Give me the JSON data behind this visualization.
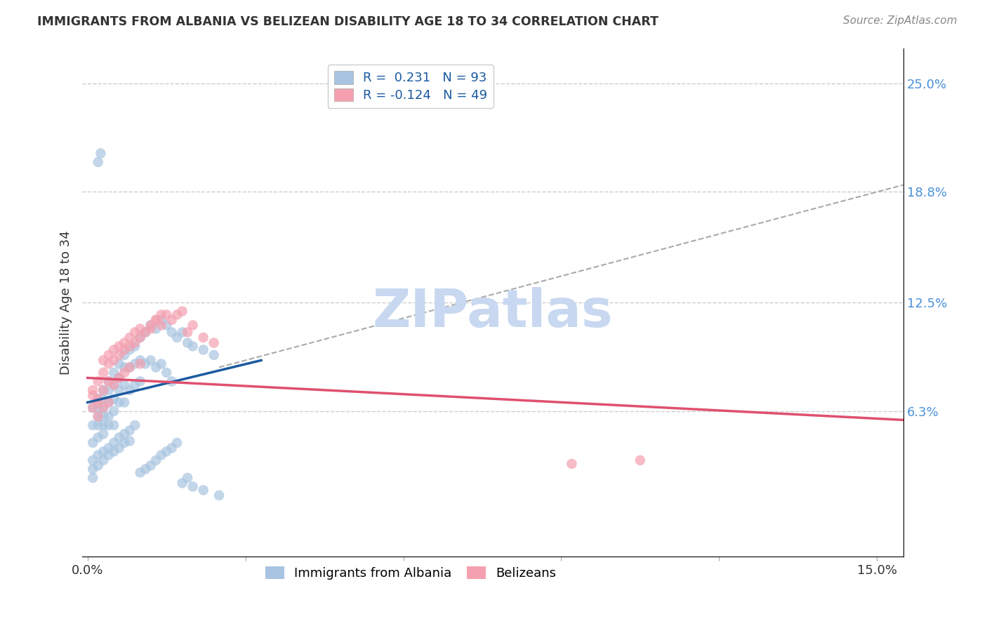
{
  "title": "IMMIGRANTS FROM ALBANIA VS BELIZEAN DISABILITY AGE 18 TO 34 CORRELATION CHART",
  "source": "Source: ZipAtlas.com",
  "ylabel": "Disability Age 18 to 34",
  "y_ticks_right": [
    0.063,
    0.125,
    0.188,
    0.25
  ],
  "y_tick_labels_right": [
    "6.3%",
    "12.5%",
    "18.8%",
    "25.0%"
  ],
  "xlim": [
    -0.001,
    0.155
  ],
  "ylim": [
    -0.02,
    0.27
  ],
  "legend_r1": "R =  0.231   N = 93",
  "legend_r2": "R = -0.124   N = 49",
  "blue_color": "#a8c4e0",
  "pink_color": "#f4a0b0",
  "blue_line_color": "#1a5aa0",
  "pink_line_color": "#e05070",
  "dashed_line_color": "#aaaaaa",
  "watermark": "ZIPatlas",
  "watermark_color": "#c8d8f0",
  "albania_x": [
    0.001,
    0.001,
    0.001,
    0.002,
    0.002,
    0.002,
    0.002,
    0.002,
    0.003,
    0.003,
    0.003,
    0.003,
    0.003,
    0.003,
    0.004,
    0.004,
    0.004,
    0.004,
    0.004,
    0.005,
    0.005,
    0.005,
    0.005,
    0.005,
    0.006,
    0.006,
    0.006,
    0.006,
    0.007,
    0.007,
    0.007,
    0.007,
    0.008,
    0.008,
    0.008,
    0.009,
    0.009,
    0.009,
    0.01,
    0.01,
    0.01,
    0.011,
    0.011,
    0.012,
    0.012,
    0.013,
    0.013,
    0.014,
    0.014,
    0.015,
    0.015,
    0.016,
    0.016,
    0.017,
    0.018,
    0.019,
    0.02,
    0.022,
    0.024,
    0.002,
    0.0025,
    0.001,
    0.001,
    0.001,
    0.002,
    0.002,
    0.003,
    0.003,
    0.004,
    0.004,
    0.005,
    0.005,
    0.006,
    0.006,
    0.007,
    0.007,
    0.008,
    0.008,
    0.009,
    0.01,
    0.011,
    0.012,
    0.013,
    0.014,
    0.015,
    0.016,
    0.017,
    0.018,
    0.019,
    0.02,
    0.022,
    0.025
  ],
  "albania_y": [
    0.065,
    0.055,
    0.045,
    0.07,
    0.065,
    0.06,
    0.055,
    0.048,
    0.075,
    0.07,
    0.065,
    0.06,
    0.055,
    0.05,
    0.08,
    0.075,
    0.068,
    0.06,
    0.055,
    0.085,
    0.078,
    0.07,
    0.063,
    0.055,
    0.09,
    0.082,
    0.075,
    0.068,
    0.095,
    0.088,
    0.078,
    0.068,
    0.098,
    0.088,
    0.075,
    0.1,
    0.09,
    0.078,
    0.105,
    0.092,
    0.08,
    0.108,
    0.09,
    0.112,
    0.092,
    0.11,
    0.088,
    0.115,
    0.09,
    0.112,
    0.085,
    0.108,
    0.08,
    0.105,
    0.108,
    0.102,
    0.1,
    0.098,
    0.095,
    0.205,
    0.21,
    0.035,
    0.03,
    0.025,
    0.038,
    0.032,
    0.04,
    0.035,
    0.042,
    0.038,
    0.045,
    0.04,
    0.048,
    0.042,
    0.05,
    0.045,
    0.052,
    0.046,
    0.055,
    0.028,
    0.03,
    0.032,
    0.035,
    0.038,
    0.04,
    0.042,
    0.045,
    0.022,
    0.025,
    0.02,
    0.018,
    0.015
  ],
  "belize_x": [
    0.001,
    0.001,
    0.002,
    0.002,
    0.002,
    0.003,
    0.003,
    0.003,
    0.004,
    0.004,
    0.004,
    0.005,
    0.005,
    0.006,
    0.006,
    0.007,
    0.007,
    0.008,
    0.008,
    0.009,
    0.01,
    0.01,
    0.011,
    0.012,
    0.013,
    0.014,
    0.015,
    0.016,
    0.017,
    0.018,
    0.019,
    0.02,
    0.022,
    0.024,
    0.003,
    0.004,
    0.005,
    0.006,
    0.007,
    0.008,
    0.009,
    0.01,
    0.012,
    0.013,
    0.014,
    0.092,
    0.105,
    0.001,
    0.002
  ],
  "belize_y": [
    0.075,
    0.065,
    0.08,
    0.07,
    0.06,
    0.085,
    0.075,
    0.065,
    0.09,
    0.08,
    0.068,
    0.092,
    0.078,
    0.095,
    0.082,
    0.098,
    0.085,
    0.1,
    0.088,
    0.102,
    0.105,
    0.09,
    0.108,
    0.11,
    0.115,
    0.112,
    0.118,
    0.115,
    0.118,
    0.12,
    0.108,
    0.112,
    0.105,
    0.102,
    0.092,
    0.095,
    0.098,
    0.1,
    0.102,
    0.105,
    0.108,
    0.11,
    0.112,
    0.115,
    0.118,
    0.033,
    0.035,
    0.072,
    0.068
  ],
  "blue_line_x0": 0.0,
  "blue_line_x1": 0.033,
  "blue_line_y0": 0.068,
  "blue_line_y1": 0.092,
  "pink_line_x0": 0.0,
  "pink_line_x1": 0.155,
  "pink_line_y0": 0.082,
  "pink_line_y1": 0.058,
  "dash_line_x0": 0.025,
  "dash_line_x1": 0.155,
  "dash_line_y0": 0.088,
  "dash_line_y1": 0.192
}
